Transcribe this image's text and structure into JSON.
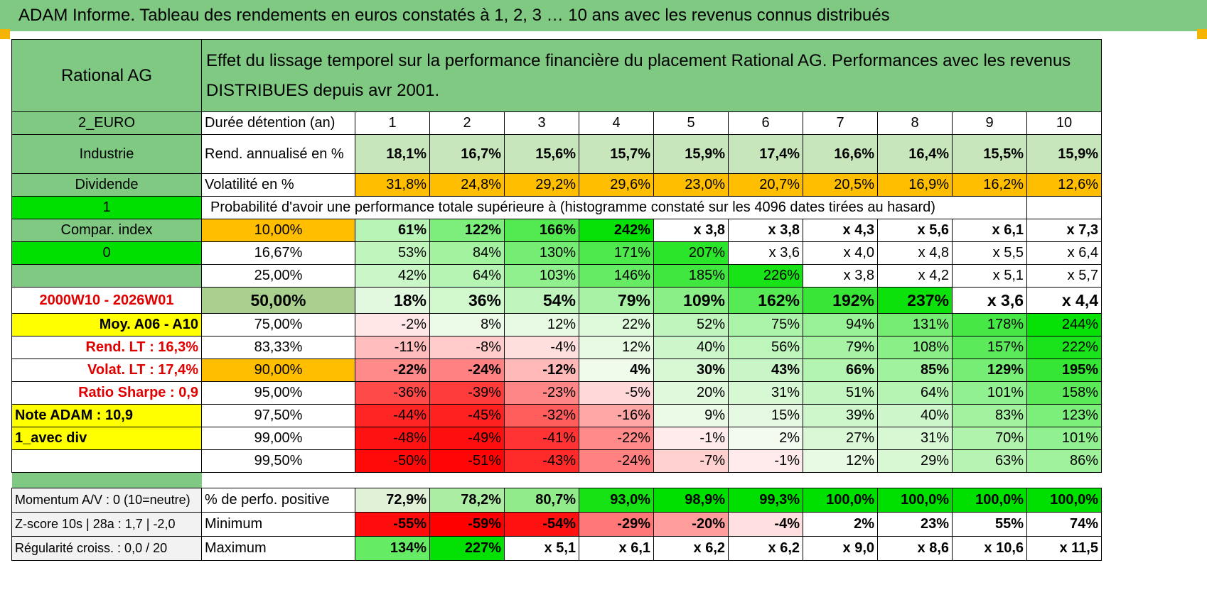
{
  "page_title": "ADAM Informe. Tableau des rendements en euros constatés à 1, 2, 3 … 10 ans avec les revenus connus distribués",
  "left": {
    "name": "Rational AG",
    "currency": "2_EURO",
    "sector": "Industrie",
    "type": "Dividende",
    "one": "1",
    "compar": "Compar. index",
    "zero": "0",
    "period": "2000W10 - 2026W01",
    "moy": "Moy. A06 - A10",
    "rend_lt": "Rend. LT :    16,3%",
    "volat_lt": "Volat. LT :    17,4%",
    "sharpe": "Ratio Sharpe :     0,9",
    "note": "Note ADAM : 10,9",
    "div": "1_avec div",
    "momentum": "Momentum A/V : 0 (10=neutre)",
    "zscore": "Z-score 10s | 28a : 1,7 | -2,0",
    "regularite": "Régularité croiss. : 0,0 / 20"
  },
  "header_text": "Effet du lissage temporel sur la performance financière du placement Rational AG. Performances avec les revenus DISTRIBUES depuis avr 2001.",
  "duration_label": "Durée détention (an)",
  "years": [
    "1",
    "2",
    "3",
    "4",
    "5",
    "6",
    "7",
    "8",
    "9",
    "10"
  ],
  "rend_label": "Rend. annualisé en %",
  "rend": [
    "18,1%",
    "16,7%",
    "15,6%",
    "15,7%",
    "15,9%",
    "17,4%",
    "16,6%",
    "16,4%",
    "15,5%",
    "15,9%"
  ],
  "vol_label": "Volatilité en %",
  "vol": [
    "31,8%",
    "24,8%",
    "29,2%",
    "29,6%",
    "23,0%",
    "20,7%",
    "20,5%",
    "16,9%",
    "16,2%",
    "12,6%"
  ],
  "prob_label": "Probabilité d'avoir une performance totale supérieure à (histogramme constaté sur les 4096 dates tirées au hasard)",
  "prob_rows": [
    {
      "p": "10,00%",
      "v": [
        "61%",
        "122%",
        "166%",
        "242%",
        "x 3,8",
        "x 3,8",
        "x 4,3",
        "x 5,6",
        "x 6,1",
        "x 7,3"
      ]
    },
    {
      "p": "16,67%",
      "v": [
        "53%",
        "84%",
        "130%",
        "171%",
        "207%",
        "x 3,6",
        "x 4,0",
        "x 4,8",
        "x 5,5",
        "x 6,4"
      ]
    },
    {
      "p": "25,00%",
      "v": [
        "42%",
        "64%",
        "103%",
        "146%",
        "185%",
        "226%",
        "x 3,8",
        "x 4,2",
        "x 5,1",
        "x 5,7"
      ]
    },
    {
      "p": "50,00%",
      "v": [
        "18%",
        "36%",
        "54%",
        "79%",
        "109%",
        "162%",
        "192%",
        "237%",
        "x 3,6",
        "x 4,4"
      ]
    },
    {
      "p": "75,00%",
      "v": [
        "-2%",
        "8%",
        "12%",
        "22%",
        "52%",
        "75%",
        "94%",
        "131%",
        "178%",
        "244%"
      ]
    },
    {
      "p": "83,33%",
      "v": [
        "-11%",
        "-8%",
        "-4%",
        "12%",
        "40%",
        "56%",
        "79%",
        "108%",
        "157%",
        "222%"
      ]
    },
    {
      "p": "90,00%",
      "v": [
        "-22%",
        "-24%",
        "-12%",
        "4%",
        "30%",
        "43%",
        "66%",
        "85%",
        "129%",
        "195%"
      ]
    },
    {
      "p": "95,00%",
      "v": [
        "-36%",
        "-39%",
        "-23%",
        "-5%",
        "20%",
        "31%",
        "51%",
        "64%",
        "101%",
        "158%"
      ]
    },
    {
      "p": "97,50%",
      "v": [
        "-44%",
        "-45%",
        "-32%",
        "-16%",
        "9%",
        "15%",
        "39%",
        "40%",
        "83%",
        "123%"
      ]
    },
    {
      "p": "99,00%",
      "v": [
        "-48%",
        "-49%",
        "-41%",
        "-22%",
        "-1%",
        "2%",
        "27%",
        "31%",
        "70%",
        "101%"
      ]
    },
    {
      "p": "99,50%",
      "v": [
        "-50%",
        "-51%",
        "-43%",
        "-24%",
        "-7%",
        "-1%",
        "12%",
        "29%",
        "63%",
        "86%"
      ]
    }
  ],
  "positive_label": "% de perfo. positive",
  "positive": [
    "72,9%",
    "78,2%",
    "80,7%",
    "93,0%",
    "98,9%",
    "99,3%",
    "100,0%",
    "100,0%",
    "100,0%",
    "100,0%"
  ],
  "min_label": "Minimum",
  "min": [
    "-55%",
    "-59%",
    "-54%",
    "-29%",
    "-20%",
    "-4%",
    "2%",
    "23%",
    "55%",
    "74%"
  ],
  "max_label": "Maximum",
  "max": [
    "134%",
    "227%",
    "x 5,1",
    "x 6,1",
    "x 6,2",
    "x 6,2",
    "x 9,0",
    "x 8,6",
    "x 10,6",
    "x 11,5"
  ],
  "colors": {
    "header_green": "#7fc982",
    "bright_green": "#00e000",
    "orange": "#ffbe00",
    "yellow": "#ffff00",
    "label_red": "#e00000"
  }
}
